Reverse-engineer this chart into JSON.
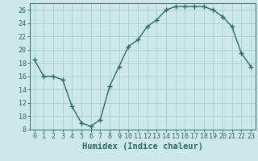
{
  "x": [
    0,
    1,
    2,
    3,
    4,
    5,
    6,
    7,
    8,
    9,
    10,
    11,
    12,
    13,
    14,
    15,
    16,
    17,
    18,
    19,
    20,
    21,
    22,
    23
  ],
  "y": [
    18.5,
    16.0,
    16.0,
    15.5,
    11.5,
    9.0,
    8.5,
    9.5,
    14.5,
    17.5,
    20.5,
    21.5,
    23.5,
    24.5,
    26.0,
    26.5,
    26.5,
    26.5,
    26.5,
    26.0,
    25.0,
    23.5,
    19.5,
    17.5
  ],
  "line_color": "#2e6b5e",
  "marker": "+",
  "marker_size": 4,
  "line_width": 1.0,
  "bg_color": "#cce8e8",
  "grid_color": "#aacfcf",
  "xlabel": "Humidex (Indice chaleur)",
  "ylim": [
    8,
    27
  ],
  "xlim": [
    -0.5,
    23.5
  ],
  "yticks": [
    8,
    10,
    12,
    14,
    16,
    18,
    20,
    22,
    24,
    26
  ],
  "xticks": [
    0,
    1,
    2,
    3,
    4,
    5,
    6,
    7,
    8,
    9,
    10,
    11,
    12,
    13,
    14,
    15,
    16,
    17,
    18,
    19,
    20,
    21,
    22,
    23
  ],
  "xlabel_fontsize": 7.5,
  "tick_fontsize": 6,
  "axis_color": "#2e6b5e",
  "font_family": "monospace"
}
